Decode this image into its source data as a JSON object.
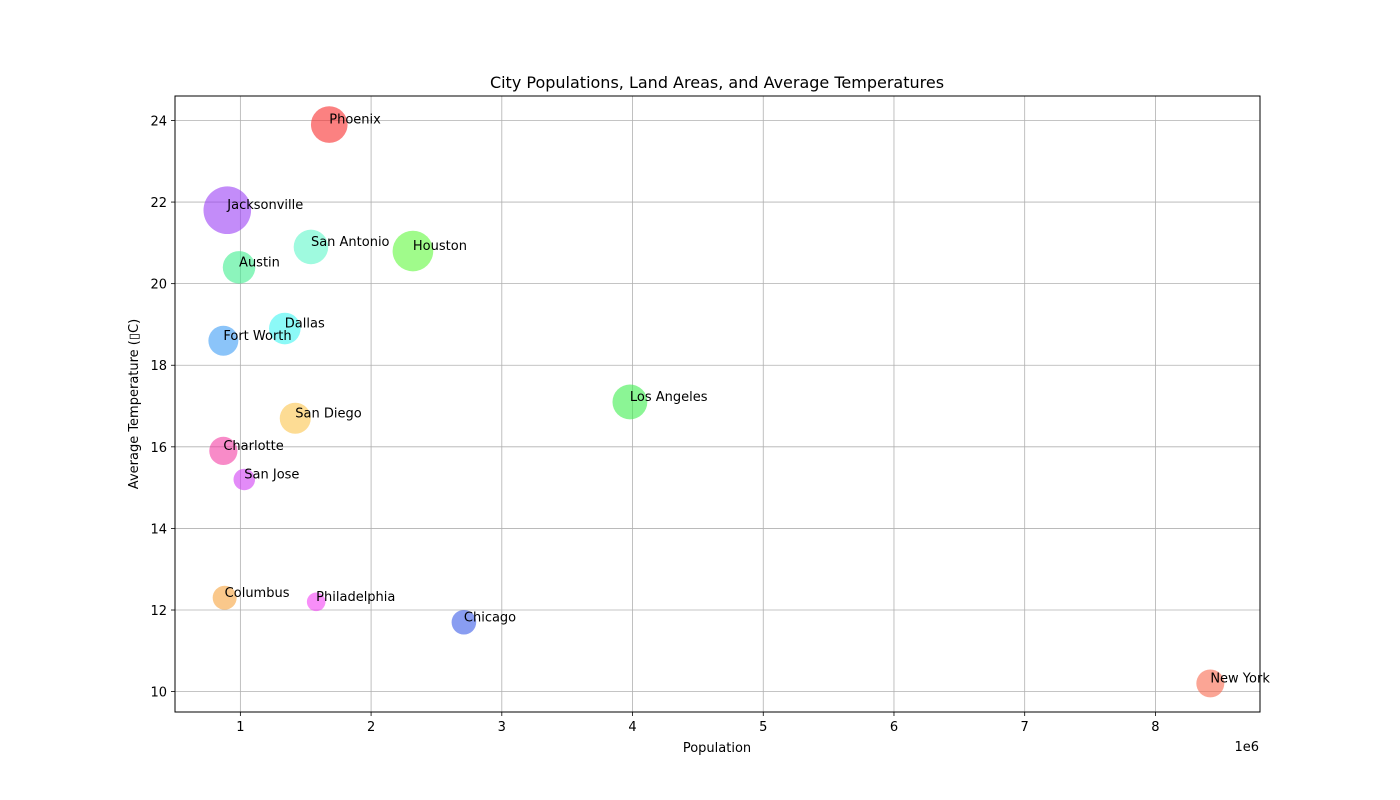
{
  "chart_data": {
    "type": "scatter",
    "title": "City Populations, Land Areas, and Average Temperatures",
    "xlabel": "Population",
    "ylabel": "Average Temperature (▯C)",
    "x_offset_label": "1e6",
    "xlim": [
      500000,
      8800000
    ],
    "ylim": [
      9.5,
      24.6
    ],
    "xticks": [
      1000000,
      2000000,
      3000000,
      4000000,
      5000000,
      6000000,
      7000000,
      8000000
    ],
    "xtick_labels": [
      "1",
      "2",
      "3",
      "4",
      "5",
      "6",
      "7",
      "8"
    ],
    "yticks": [
      10,
      12,
      14,
      16,
      18,
      20,
      22,
      24
    ],
    "ytick_labels": [
      "10",
      "12",
      "14",
      "16",
      "18",
      "20",
      "22",
      "24"
    ],
    "grid": true,
    "points": [
      {
        "label": "New York",
        "x": 8420000,
        "y": 10.2,
        "size": 783,
        "color": "#f8694f"
      },
      {
        "label": "Los Angeles",
        "x": 3980000,
        "y": 17.1,
        "size": 1214,
        "color": "#3dee4f"
      },
      {
        "label": "Chicago",
        "x": 2710000,
        "y": 11.7,
        "size": 606,
        "color": "#3b5ce8"
      },
      {
        "label": "Houston",
        "x": 2320000,
        "y": 20.8,
        "size": 1651,
        "color": "#61f93e"
      },
      {
        "label": "Phoenix",
        "x": 1680000,
        "y": 23.9,
        "size": 1340,
        "color": "#f82d2d"
      },
      {
        "label": "Philadelphia",
        "x": 1580000,
        "y": 12.2,
        "size": 347,
        "color": "#f343f5"
      },
      {
        "label": "San Antonio",
        "x": 1540000,
        "y": 20.9,
        "size": 1194,
        "color": "#5ff7c9"
      },
      {
        "label": "San Diego",
        "x": 1420000,
        "y": 16.7,
        "size": 964,
        "color": "#fcc54d"
      },
      {
        "label": "Dallas",
        "x": 1340000,
        "y": 18.9,
        "size": 999,
        "color": "#3ff5f2"
      },
      {
        "label": "San Jose",
        "x": 1030000,
        "y": 15.2,
        "size": 465,
        "color": "#d13ef3"
      },
      {
        "label": "Austin",
        "x": 990000,
        "y": 20.4,
        "size": 1058,
        "color": "#3fef8f"
      },
      {
        "label": "Jacksonville",
        "x": 900000,
        "y": 21.8,
        "size": 2265,
        "color": "#9b3ff5"
      },
      {
        "label": "Fort Worth",
        "x": 870000,
        "y": 18.6,
        "size": 898,
        "color": "#3d9cf5"
      },
      {
        "label": "Columbus",
        "x": 880000,
        "y": 12.3,
        "size": 577,
        "color": "#f7a33d"
      },
      {
        "label": "Charlotte",
        "x": 870000,
        "y": 15.9,
        "size": 797,
        "color": "#f33ea4"
      }
    ]
  }
}
